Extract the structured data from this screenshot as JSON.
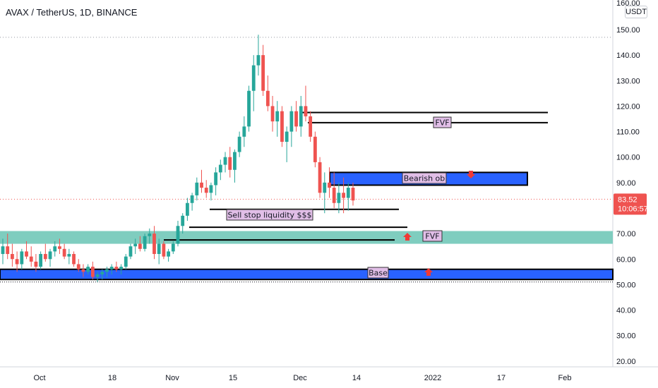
{
  "header": {
    "title": "AVAX / TetherUS, 1D, BINANCE",
    "currency": "USDT"
  },
  "price_tag": {
    "price": "83.52",
    "countdown": "10:06:57",
    "color": "#ef5350"
  },
  "colors": {
    "up": "#26a69a",
    "down": "#ef5350",
    "blue_zone": "#2962ff",
    "teal_zone": "#7fcdbf",
    "label_bg": "#e1bee7",
    "arrow": "#ef3935"
  },
  "chart_data": {
    "type": "candlestick",
    "symbol": "AVAX / TetherUS",
    "timeframe": "1D",
    "exchange": "BINANCE",
    "y_axis": {
      "ticks": [
        "150.00",
        "140.00",
        "130.00",
        "120.00",
        "110.00",
        "100.00",
        "90.00",
        "80.00",
        "70.00",
        "60.00",
        "50.00",
        "40.00",
        "30.00",
        "20.00"
      ],
      "ylim": [
        18,
        160
      ],
      "top_label": "160.00"
    },
    "x_axis": {
      "labels": [
        "Oct",
        "18",
        "Nov",
        "15",
        "Dec",
        "14",
        "2022",
        "17",
        "Feb"
      ]
    },
    "candles": [
      [
        62,
        68,
        58,
        65
      ],
      [
        65,
        70,
        60,
        62
      ],
      [
        62,
        66,
        57,
        60
      ],
      [
        60,
        63,
        55,
        58
      ],
      [
        58,
        64,
        56,
        63
      ],
      [
        63,
        67,
        60,
        61
      ],
      [
        61,
        65,
        57,
        59
      ],
      [
        59,
        62,
        55,
        57
      ],
      [
        57,
        63,
        56,
        62
      ],
      [
        62,
        66,
        59,
        60
      ],
      [
        60,
        64,
        57,
        63
      ],
      [
        63,
        67,
        61,
        65
      ],
      [
        65,
        68,
        62,
        64
      ],
      [
        64,
        66,
        60,
        61
      ],
      [
        61,
        64,
        58,
        62
      ],
      [
        62,
        63,
        57,
        58
      ],
      [
        58,
        60,
        55,
        56
      ],
      [
        56,
        58,
        53,
        55
      ],
      [
        55,
        58,
        54,
        57
      ],
      [
        57,
        59,
        52,
        53
      ],
      [
        53,
        55,
        51,
        54
      ],
      [
        54,
        56,
        52,
        55
      ],
      [
        55,
        57,
        53,
        56
      ],
      [
        56,
        58,
        54,
        57
      ],
      [
        57,
        59,
        55,
        56
      ],
      [
        56,
        58,
        54,
        57
      ],
      [
        57,
        62,
        56,
        61
      ],
      [
        61,
        66,
        60,
        65
      ],
      [
        65,
        68,
        62,
        66
      ],
      [
        66,
        69,
        63,
        64
      ],
      [
        64,
        70,
        63,
        69
      ],
      [
        69,
        72,
        66,
        70
      ],
      [
        70,
        73,
        60,
        62
      ],
      [
        62,
        68,
        58,
        66
      ],
      [
        66,
        67,
        60,
        61
      ],
      [
        61,
        64,
        59,
        63
      ],
      [
        63,
        67,
        62,
        66
      ],
      [
        66,
        75,
        65,
        73
      ],
      [
        73,
        78,
        70,
        77
      ],
      [
        77,
        84,
        75,
        82
      ],
      [
        82,
        86,
        79,
        85
      ],
      [
        85,
        92,
        83,
        90
      ],
      [
        90,
        95,
        86,
        88
      ],
      [
        88,
        91,
        84,
        86
      ],
      [
        86,
        90,
        83,
        89
      ],
      [
        89,
        96,
        85,
        94
      ],
      [
        94,
        99,
        91,
        97
      ],
      [
        97,
        102,
        94,
        100
      ],
      [
        100,
        104,
        92,
        95
      ],
      [
        95,
        103,
        90,
        102
      ],
      [
        102,
        110,
        100,
        108
      ],
      [
        108,
        116,
        104,
        112
      ],
      [
        112,
        128,
        110,
        126
      ],
      [
        126,
        140,
        118,
        136
      ],
      [
        136,
        148,
        132,
        140
      ],
      [
        140,
        144,
        124,
        126
      ],
      [
        126,
        132,
        118,
        120
      ],
      [
        120,
        124,
        110,
        114
      ],
      [
        114,
        122,
        108,
        118
      ],
      [
        118,
        120,
        104,
        106
      ],
      [
        106,
        112,
        98,
        110
      ],
      [
        110,
        120,
        104,
        118
      ],
      [
        118,
        122,
        110,
        112
      ],
      [
        112,
        124,
        108,
        120
      ],
      [
        120,
        128,
        114,
        116
      ],
      [
        116,
        118,
        106,
        108
      ],
      [
        108,
        110,
        96,
        98
      ],
      [
        98,
        100,
        84,
        86
      ],
      [
        86,
        94,
        78,
        90
      ],
      [
        90,
        96,
        84,
        88
      ],
      [
        88,
        94,
        80,
        82
      ],
      [
        82,
        90,
        78,
        86
      ],
      [
        86,
        92,
        78,
        84
      ],
      [
        84,
        90,
        79,
        88
      ],
      [
        88,
        90,
        81,
        83
      ]
    ],
    "zones": [
      {
        "kind": "blue_box",
        "label": "Bearish ob",
        "top": 94,
        "bottom": 89
      },
      {
        "kind": "teal_band",
        "label": "FVF",
        "top": 71,
        "bottom": 66
      },
      {
        "kind": "blue_band",
        "label": "Base",
        "top": 56,
        "bottom": 52
      }
    ],
    "levels": [
      {
        "price": 117.5
      },
      {
        "price": 113.5,
        "label": "FVF"
      },
      {
        "price": 79.5,
        "label": "Sell stop liquidity $$$"
      },
      {
        "price": 72.5
      },
      {
        "price": 67.5
      }
    ]
  }
}
